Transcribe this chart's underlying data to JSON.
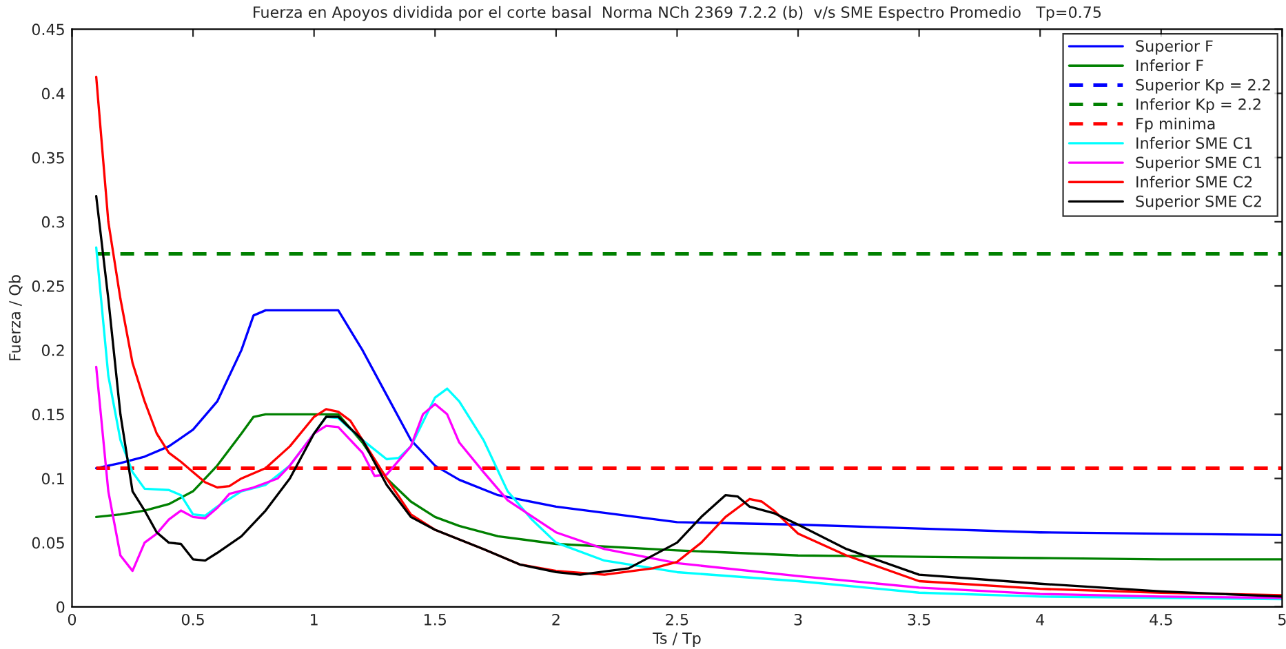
{
  "chart_data": {
    "type": "line",
    "title": "Fuerza en Apoyos dividida por el corte basal  Norma NCh 2369 7.2.2 (b)  v/s SME Espectro Promedio   Tp=0.75",
    "xlabel": "Ts / Tp",
    "ylabel": "Fuerza / Qb",
    "xlim": [
      0,
      5
    ],
    "xticks": [
      0,
      0.5,
      1,
      1.5,
      2,
      2.5,
      3,
      3.5,
      4,
      4.5,
      5
    ],
    "ylim": [
      0,
      0.45
    ],
    "yticks": [
      0,
      0.05,
      0.1,
      0.15,
      0.2,
      0.25,
      0.3,
      0.35,
      0.4,
      0.45
    ],
    "grid": false,
    "legend": "top right",
    "marker": "none",
    "series": [
      {
        "name": "Superior F",
        "color": "#0000ff",
        "line_style": "solid",
        "x": [
          0.1,
          0.2,
          0.3,
          0.4,
          0.5,
          0.6,
          0.7,
          0.75,
          0.8,
          1.1,
          1.2,
          1.3,
          1.4,
          1.5,
          1.6,
          1.76,
          2.0,
          2.5,
          3.0,
          3.5,
          4.0,
          4.5,
          5.0
        ],
        "values": [
          0.108,
          0.112,
          0.117,
          0.125,
          0.138,
          0.16,
          0.2,
          0.227,
          0.231,
          0.231,
          0.2,
          0.165,
          0.13,
          0.11,
          0.099,
          0.087,
          0.078,
          0.066,
          0.064,
          0.061,
          0.058,
          0.057,
          0.056
        ]
      },
      {
        "name": "Inferior F",
        "color": "#008000",
        "line_style": "solid",
        "x": [
          0.1,
          0.2,
          0.3,
          0.4,
          0.5,
          0.6,
          0.7,
          0.75,
          0.8,
          1.1,
          1.2,
          1.3,
          1.4,
          1.5,
          1.6,
          1.76,
          2.0,
          2.5,
          3.0,
          3.5,
          4.0,
          4.5,
          5.0
        ],
        "values": [
          0.07,
          0.072,
          0.075,
          0.08,
          0.09,
          0.11,
          0.135,
          0.148,
          0.15,
          0.15,
          0.128,
          0.1,
          0.082,
          0.07,
          0.063,
          0.055,
          0.049,
          0.044,
          0.04,
          0.039,
          0.038,
          0.037,
          0.037
        ]
      },
      {
        "name": "Superior Kp = 2.2",
        "color": "#0000ff",
        "line_style": "dashed",
        "values": [
          null
        ]
      },
      {
        "name": "Inferior Kp = 2.2",
        "color": "#008000",
        "line_style": "dashed",
        "x": [
          0.1,
          5.0
        ],
        "values": [
          0.275,
          0.275
        ]
      },
      {
        "name": "Fp minima",
        "color": "#ff0000",
        "line_style": "dashed",
        "x": [
          0.1,
          5.0
        ],
        "values": [
          0.108,
          0.108
        ]
      },
      {
        "name": "Inferior SME C1",
        "color": "#00ffff",
        "line_style": "solid",
        "x": [
          0.1,
          0.15,
          0.2,
          0.25,
          0.3,
          0.4,
          0.45,
          0.5,
          0.55,
          0.6,
          0.7,
          0.8,
          0.9,
          1.0,
          1.05,
          1.1,
          1.2,
          1.3,
          1.35,
          1.4,
          1.5,
          1.55,
          1.6,
          1.7,
          1.8,
          1.9,
          2.0,
          2.2,
          2.5,
          3.0,
          3.5,
          4.0,
          4.5,
          5.0
        ],
        "values": [
          0.28,
          0.18,
          0.13,
          0.105,
          0.092,
          0.091,
          0.087,
          0.072,
          0.071,
          0.078,
          0.09,
          0.095,
          0.11,
          0.135,
          0.148,
          0.147,
          0.13,
          0.115,
          0.116,
          0.125,
          0.163,
          0.17,
          0.16,
          0.13,
          0.09,
          0.068,
          0.05,
          0.036,
          0.027,
          0.02,
          0.011,
          0.008,
          0.007,
          0.006
        ]
      },
      {
        "name": "Superior SME C1",
        "color": "#ff00ff",
        "line_style": "solid",
        "x": [
          0.1,
          0.15,
          0.2,
          0.25,
          0.3,
          0.35,
          0.4,
          0.45,
          0.5,
          0.55,
          0.6,
          0.65,
          0.75,
          0.85,
          0.9,
          1.0,
          1.05,
          1.1,
          1.2,
          1.25,
          1.3,
          1.4,
          1.45,
          1.5,
          1.55,
          1.6,
          1.7,
          1.8,
          2.0,
          2.2,
          2.5,
          3.0,
          3.5,
          4.0,
          4.5,
          5.0
        ],
        "values": [
          0.187,
          0.09,
          0.04,
          0.028,
          0.05,
          0.057,
          0.068,
          0.075,
          0.07,
          0.069,
          0.077,
          0.088,
          0.093,
          0.1,
          0.11,
          0.135,
          0.141,
          0.14,
          0.12,
          0.102,
          0.103,
          0.125,
          0.15,
          0.158,
          0.15,
          0.128,
          0.105,
          0.083,
          0.058,
          0.045,
          0.034,
          0.024,
          0.015,
          0.01,
          0.008,
          0.007
        ]
      },
      {
        "name": "Inferior SME C2",
        "color": "#ff0000",
        "line_style": "solid",
        "x": [
          0.1,
          0.15,
          0.2,
          0.25,
          0.3,
          0.35,
          0.4,
          0.45,
          0.5,
          0.55,
          0.6,
          0.65,
          0.7,
          0.8,
          0.9,
          1.0,
          1.05,
          1.1,
          1.15,
          1.2,
          1.3,
          1.4,
          1.5,
          1.7,
          1.85,
          2.0,
          2.2,
          2.4,
          2.5,
          2.6,
          2.7,
          2.8,
          2.85,
          2.9,
          3.0,
          3.2,
          3.5,
          4.0,
          4.5,
          5.0
        ],
        "values": [
          0.413,
          0.3,
          0.24,
          0.19,
          0.16,
          0.135,
          0.12,
          0.113,
          0.105,
          0.097,
          0.093,
          0.094,
          0.1,
          0.108,
          0.125,
          0.148,
          0.154,
          0.152,
          0.145,
          0.13,
          0.1,
          0.072,
          0.06,
          0.045,
          0.033,
          0.028,
          0.025,
          0.03,
          0.035,
          0.05,
          0.07,
          0.084,
          0.082,
          0.075,
          0.057,
          0.04,
          0.02,
          0.014,
          0.011,
          0.009
        ]
      },
      {
        "name": "Superior SME C2",
        "color": "#000000",
        "line_style": "solid",
        "x": [
          0.1,
          0.15,
          0.2,
          0.25,
          0.3,
          0.35,
          0.4,
          0.45,
          0.5,
          0.55,
          0.6,
          0.7,
          0.8,
          0.9,
          1.0,
          1.05,
          1.1,
          1.2,
          1.3,
          1.4,
          1.5,
          1.7,
          1.85,
          2.0,
          2.1,
          2.3,
          2.5,
          2.6,
          2.7,
          2.75,
          2.8,
          2.9,
          3.0,
          3.2,
          3.5,
          4.0,
          4.5,
          5.0
        ],
        "values": [
          0.32,
          0.24,
          0.15,
          0.09,
          0.075,
          0.058,
          0.05,
          0.049,
          0.037,
          0.036,
          0.042,
          0.055,
          0.075,
          0.1,
          0.135,
          0.148,
          0.148,
          0.13,
          0.095,
          0.07,
          0.06,
          0.045,
          0.033,
          0.027,
          0.025,
          0.03,
          0.05,
          0.07,
          0.087,
          0.086,
          0.078,
          0.073,
          0.064,
          0.045,
          0.025,
          0.018,
          0.012,
          0.008
        ]
      }
    ]
  }
}
